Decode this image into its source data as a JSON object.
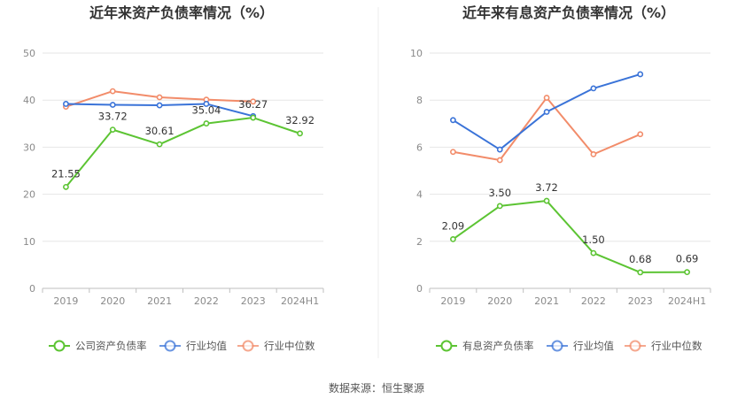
{
  "source_text": "数据来源：恒生聚源",
  "chart_data": [
    {
      "type": "line",
      "title": "近年来资产负债率情况（%）",
      "categories": [
        "2019",
        "2020",
        "2021",
        "2022",
        "2023",
        "2024H1"
      ],
      "ylim": [
        0,
        50
      ],
      "yticks": [
        0,
        10,
        20,
        30,
        40,
        50
      ],
      "grid": true,
      "legend_position": "bottom",
      "series": [
        {
          "name": "公司资产负债率",
          "color": "#5cc433",
          "values": [
            21.55,
            33.72,
            30.61,
            35.04,
            36.27,
            32.92
          ],
          "labels": [
            "21.55",
            "33.72",
            "30.61",
            "35.04",
            "36.27",
            "32.92"
          ]
        },
        {
          "name": "行业均值",
          "color": "#3a73d8",
          "values": [
            39.2,
            39.0,
            38.9,
            39.2,
            36.6,
            null
          ]
        },
        {
          "name": "行业中位数",
          "color": "#f28c6a",
          "values": [
            38.6,
            41.9,
            40.6,
            40.1,
            39.7,
            null
          ]
        }
      ]
    },
    {
      "type": "line",
      "title": "近年来有息资产负债率情况（%）",
      "categories": [
        "2019",
        "2020",
        "2021",
        "2022",
        "2023",
        "2024H1"
      ],
      "ylim": [
        0,
        10
      ],
      "yticks": [
        0,
        2,
        4,
        6,
        8,
        10
      ],
      "grid": true,
      "legend_position": "bottom",
      "series": [
        {
          "name": "有息资产负债率",
          "color": "#5cc433",
          "values": [
            2.09,
            3.5,
            3.72,
            1.5,
            0.68,
            0.69
          ],
          "labels": [
            "2.09",
            "3.50",
            "3.72",
            "1.50",
            "0.68",
            "0.69"
          ]
        },
        {
          "name": "行业均值",
          "color": "#3a73d8",
          "values": [
            7.15,
            5.9,
            7.5,
            8.5,
            9.1,
            null
          ]
        },
        {
          "name": "行业中位数",
          "color": "#f28c6a",
          "values": [
            5.8,
            5.45,
            8.1,
            5.7,
            6.55,
            null
          ]
        }
      ]
    }
  ]
}
